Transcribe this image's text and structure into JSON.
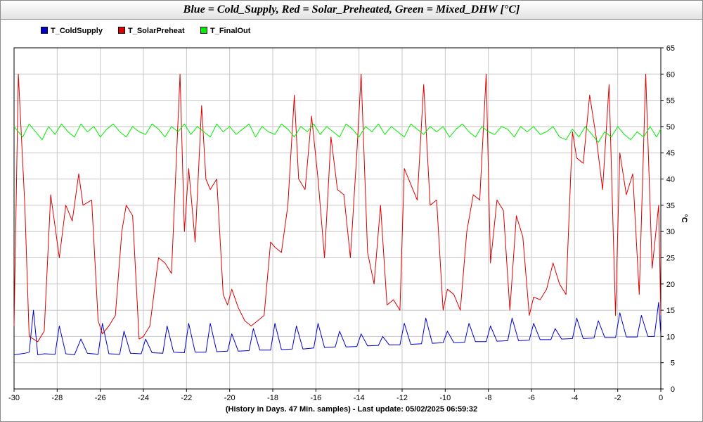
{
  "chart_data": {
    "type": "line",
    "title": "Blue = Cold_Supply, Red = Solar_Preheated, Green = Mixed_DHW [°C]",
    "xlabel": "(History in Days. 47 Min. samples) - Last update: 05/02/2025 06:59:32",
    "ylabel": "°C",
    "xlim": [
      -30,
      0
    ],
    "ylim": [
      0,
      65
    ],
    "x_ticks": [
      "-30",
      "-28",
      "-26",
      "-24",
      "-22",
      "-20",
      "-18",
      "-16",
      "-14",
      "-12",
      "-10",
      "-8",
      "-6",
      "-4",
      "-2",
      "0"
    ],
    "y_ticks": [
      "0",
      "5",
      "10",
      "15",
      "20",
      "25",
      "30",
      "35",
      "40",
      "45",
      "50",
      "55",
      "60",
      "65"
    ],
    "grid": true,
    "legend_position": "top-left",
    "series": [
      {
        "name": "T_ColdSupply",
        "color": "#0000cc",
        "x": [
          -30,
          -29.5,
          -29.3,
          -29.1,
          -28.9,
          -28.6,
          -28.1,
          -27.9,
          -27.6,
          -27.2,
          -26.9,
          -26.6,
          -26.1,
          -25.9,
          -25.6,
          -25.1,
          -24.9,
          -24.6,
          -24.1,
          -23.9,
          -23.6,
          -23.1,
          -22.9,
          -22.6,
          -22.1,
          -21.9,
          -21.6,
          -21.1,
          -20.9,
          -20.6,
          -20.1,
          -19.9,
          -19.6,
          -19.1,
          -18.9,
          -18.6,
          -18.1,
          -17.9,
          -17.6,
          -17.1,
          -16.9,
          -16.6,
          -16.1,
          -15.9,
          -15.6,
          -15.1,
          -14.9,
          -14.6,
          -14.1,
          -13.9,
          -13.6,
          -13.1,
          -12.9,
          -12.6,
          -12.1,
          -11.9,
          -11.6,
          -11.1,
          -10.9,
          -10.6,
          -10.1,
          -9.9,
          -9.6,
          -9.1,
          -8.9,
          -8.6,
          -8.1,
          -7.9,
          -7.6,
          -7.1,
          -6.9,
          -6.6,
          -6.1,
          -5.9,
          -5.6,
          -5.1,
          -4.9,
          -4.6,
          -4.1,
          -3.9,
          -3.6,
          -3.1,
          -2.9,
          -2.6,
          -2.1,
          -1.9,
          -1.6,
          -1.1,
          -0.9,
          -0.6,
          -0.3,
          -0.1,
          0
        ],
        "y": [
          6.5,
          6.8,
          7.0,
          15.0,
          6.5,
          6.7,
          6.6,
          12.0,
          6.7,
          6.5,
          9.5,
          6.8,
          6.6,
          12.5,
          6.7,
          6.6,
          11.0,
          6.8,
          6.7,
          9.5,
          6.9,
          6.8,
          12.0,
          7.0,
          6.9,
          12.5,
          7.0,
          7.0,
          12.5,
          7.1,
          7.2,
          10.5,
          7.2,
          7.3,
          11.5,
          7.4,
          7.4,
          12.5,
          7.5,
          7.6,
          12.0,
          7.6,
          7.8,
          12.5,
          7.9,
          8.0,
          11.0,
          8.0,
          8.1,
          10.5,
          8.2,
          8.3,
          10.0,
          8.4,
          8.4,
          12.5,
          8.5,
          8.6,
          13.5,
          8.7,
          8.8,
          11.0,
          8.8,
          8.9,
          12.5,
          9.0,
          9.0,
          12.0,
          9.1,
          9.2,
          13.5,
          9.2,
          9.3,
          12.5,
          9.4,
          9.4,
          11.5,
          9.5,
          9.6,
          13.5,
          9.6,
          9.7,
          13.0,
          9.8,
          9.8,
          14.5,
          9.9,
          9.9,
          14.0,
          10.0,
          10.0,
          16.5,
          10.5
        ]
      },
      {
        "name": "T_SolarPreheat",
        "color": "#dd0000",
        "x": [
          -30,
          -29.8,
          -29.5,
          -29.3,
          -29.1,
          -28.9,
          -28.6,
          -28.3,
          -28.1,
          -27.9,
          -27.6,
          -27.3,
          -27.0,
          -26.8,
          -26.4,
          -26.1,
          -25.9,
          -25.6,
          -25.3,
          -25.0,
          -24.8,
          -24.5,
          -24.2,
          -24.0,
          -23.7,
          -23.3,
          -23.0,
          -22.7,
          -22.3,
          -22.1,
          -21.9,
          -21.6,
          -21.3,
          -21.1,
          -20.9,
          -20.6,
          -20.3,
          -20.1,
          -19.9,
          -19.6,
          -19.3,
          -19.0,
          -18.7,
          -18.4,
          -18.1,
          -17.9,
          -17.6,
          -17.3,
          -17.0,
          -16.8,
          -16.5,
          -16.2,
          -15.9,
          -15.6,
          -15.3,
          -15.0,
          -14.7,
          -14.4,
          -14.1,
          -13.9,
          -13.6,
          -13.3,
          -13.0,
          -12.7,
          -12.4,
          -12.1,
          -11.9,
          -11.6,
          -11.3,
          -11.0,
          -10.7,
          -10.4,
          -10.1,
          -9.9,
          -9.6,
          -9.3,
          -9.0,
          -8.7,
          -8.4,
          -8.1,
          -7.9,
          -7.6,
          -7.3,
          -7.0,
          -6.7,
          -6.4,
          -6.1,
          -5.9,
          -5.6,
          -5.3,
          -5.0,
          -4.7,
          -4.4,
          -4.1,
          -3.9,
          -3.6,
          -3.3,
          -3.0,
          -2.7,
          -2.4,
          -2.1,
          -1.9,
          -1.6,
          -1.3,
          -1.0,
          -0.7,
          -0.4,
          -0.1,
          0
        ],
        "y": [
          12.0,
          60.0,
          35.0,
          10.0,
          9.5,
          9.0,
          11.0,
          37.0,
          31.0,
          25.0,
          35.0,
          32.0,
          41.0,
          35.0,
          36.0,
          13.0,
          10.5,
          12.0,
          14.0,
          30.0,
          35.0,
          33.0,
          9.5,
          10.0,
          12.0,
          25.0,
          24.0,
          22.0,
          60.0,
          30.0,
          42.0,
          28.0,
          54.0,
          40.0,
          38.0,
          40.0,
          18.0,
          16.0,
          19.0,
          15.5,
          13.0,
          12.0,
          13.0,
          14.0,
          28.0,
          27.0,
          26.0,
          35.0,
          56.0,
          40.0,
          38.0,
          52.0,
          40.0,
          25.0,
          48.0,
          38.0,
          37.0,
          25.0,
          45.0,
          60.0,
          26.0,
          20.0,
          35.0,
          16.0,
          17.0,
          15.0,
          42.0,
          39.0,
          36.0,
          58.0,
          35.0,
          36.0,
          15.0,
          19.0,
          18.0,
          15.0,
          30.0,
          37.0,
          36.0,
          60.0,
          24.0,
          36.0,
          34.0,
          15.0,
          33.0,
          29.0,
          14.0,
          17.5,
          17.0,
          19.0,
          24.0,
          20.0,
          18.0,
          49.0,
          44.0,
          43.0,
          56.0,
          48.0,
          38.0,
          58.0,
          14.0,
          45.0,
          37.0,
          41.0,
          18.0,
          60.0,
          23.0,
          35.0,
          14.0
        ]
      },
      {
        "name": "T_FinalOut",
        "color": "#00ee00",
        "x": [
          -30,
          -29.6,
          -29.3,
          -29.0,
          -28.7,
          -28.4,
          -28.1,
          -27.8,
          -27.5,
          -27.2,
          -26.9,
          -26.6,
          -26.3,
          -26.0,
          -25.7,
          -25.4,
          -25.1,
          -24.8,
          -24.5,
          -24.2,
          -23.9,
          -23.6,
          -23.3,
          -23.0,
          -22.7,
          -22.4,
          -22.1,
          -21.8,
          -21.5,
          -21.2,
          -20.9,
          -20.6,
          -20.3,
          -20.0,
          -19.7,
          -19.4,
          -19.1,
          -18.8,
          -18.5,
          -18.2,
          -17.9,
          -17.6,
          -17.3,
          -17.0,
          -16.7,
          -16.4,
          -16.1,
          -15.8,
          -15.5,
          -15.2,
          -14.9,
          -14.6,
          -14.3,
          -14.0,
          -13.7,
          -13.4,
          -13.1,
          -12.8,
          -12.5,
          -12.2,
          -11.9,
          -11.6,
          -11.3,
          -11.0,
          -10.7,
          -10.4,
          -10.1,
          -9.8,
          -9.5,
          -9.2,
          -8.9,
          -8.6,
          -8.3,
          -8.0,
          -7.7,
          -7.4,
          -7.1,
          -6.8,
          -6.5,
          -6.2,
          -5.9,
          -5.6,
          -5.3,
          -5.0,
          -4.7,
          -4.4,
          -4.1,
          -3.8,
          -3.5,
          -3.2,
          -2.9,
          -2.6,
          -2.3,
          -2.0,
          -1.7,
          -1.4,
          -1.1,
          -0.8,
          -0.5,
          -0.2,
          0
        ],
        "y": [
          50.0,
          48.0,
          50.5,
          49.0,
          47.5,
          50.0,
          48.5,
          50.5,
          49.0,
          48.0,
          50.5,
          49.0,
          50.0,
          48.0,
          49.5,
          50.5,
          49.0,
          48.0,
          50.0,
          49.0,
          48.5,
          50.5,
          49.5,
          48.0,
          50.0,
          49.0,
          50.5,
          48.5,
          50.0,
          49.0,
          48.0,
          50.5,
          49.0,
          50.0,
          48.5,
          49.5,
          50.5,
          48.0,
          50.0,
          49.0,
          48.5,
          50.5,
          49.5,
          48.0,
          50.0,
          49.0,
          50.5,
          48.5,
          50.0,
          49.0,
          48.0,
          50.5,
          49.5,
          48.0,
          50.0,
          49.0,
          50.5,
          48.5,
          50.0,
          49.0,
          48.0,
          50.5,
          49.5,
          48.5,
          50.0,
          49.0,
          50.0,
          48.0,
          49.5,
          50.5,
          49.0,
          48.0,
          50.0,
          49.0,
          48.5,
          50.0,
          49.5,
          48.0,
          50.0,
          49.0,
          50.0,
          48.5,
          49.0,
          50.0,
          48.0,
          47.5,
          49.5,
          48.0,
          50.0,
          48.5,
          47.0,
          49.0,
          48.0,
          50.0,
          48.5,
          47.5,
          49.0,
          48.0,
          50.0,
          48.0,
          49.5
        ]
      }
    ]
  }
}
